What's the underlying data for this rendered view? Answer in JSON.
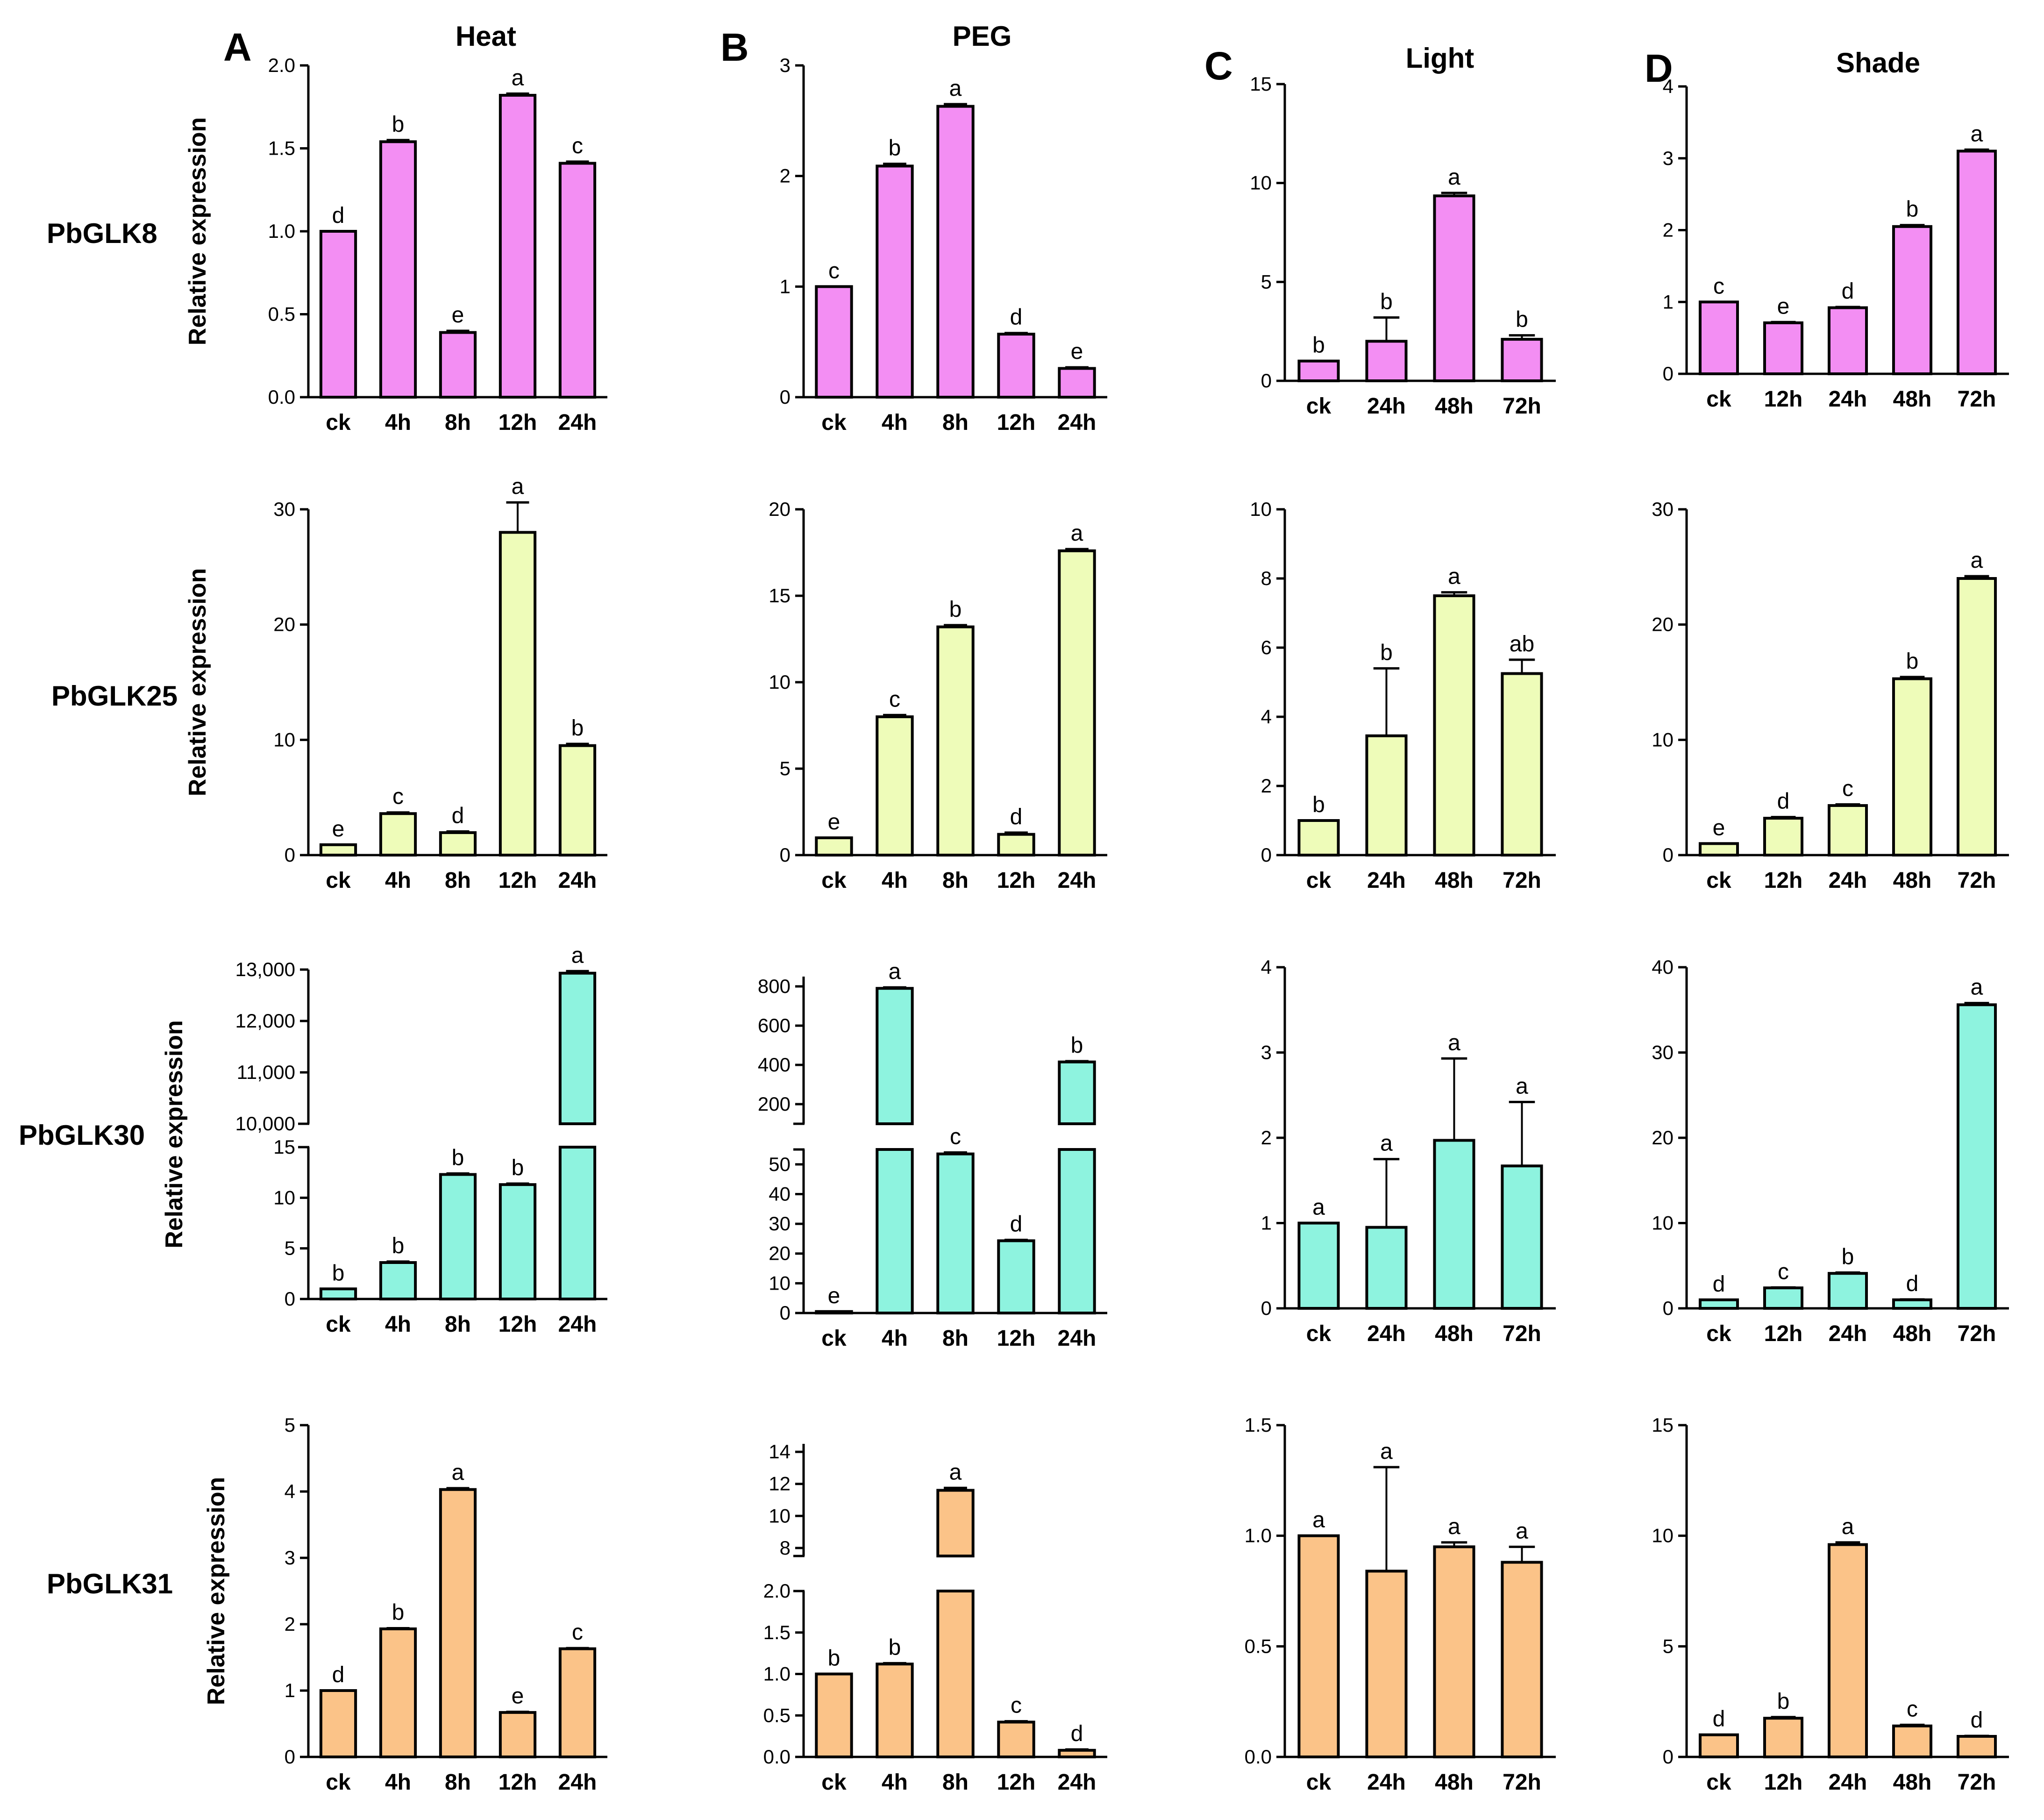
{
  "figure": {
    "columns": [
      {
        "letter": "A",
        "title": "Heat"
      },
      {
        "letter": "B",
        "title": "PEG"
      },
      {
        "letter": "C",
        "title": "Light"
      },
      {
        "letter": "D",
        "title": "Shade"
      }
    ],
    "genes": [
      "PbGLK8",
      "PbGLK25",
      "PbGLK30",
      "PbGLK31"
    ],
    "ylabel": "Relative expression",
    "colors": {
      "PbGLK8": "#f38ef3",
      "PbGLK25": "#eefcb9",
      "PbGLK30": "#8ef3df",
      "PbGLK31": "#fbc388"
    }
  },
  "chart_data": [
    {
      "type": "bar",
      "gene": "PbGLK8",
      "condition": "Heat",
      "categories": [
        "ck",
        "4h",
        "8h",
        "12h",
        "24h"
      ],
      "values": [
        1.0,
        1.54,
        0.39,
        1.82,
        1.41
      ],
      "errors": [
        0,
        0.01,
        0.01,
        0.01,
        0.01
      ],
      "letters": [
        "d",
        "b",
        "e",
        "a",
        "c"
      ],
      "ylim": [
        0,
        2.0
      ],
      "yticks": [
        0,
        0.5,
        1.0,
        1.5,
        2.0
      ],
      "ytick_labels": [
        "0.0",
        "0.5",
        "1.0",
        "1.5",
        "2.0"
      ],
      "ylabel": "Relative expression"
    },
    {
      "type": "bar",
      "gene": "PbGLK8",
      "condition": "PEG",
      "categories": [
        "ck",
        "4h",
        "8h",
        "12h",
        "24h"
      ],
      "values": [
        1.0,
        2.09,
        2.63,
        0.57,
        0.26
      ],
      "errors": [
        0,
        0.02,
        0.02,
        0.01,
        0.01
      ],
      "letters": [
        "c",
        "b",
        "a",
        "d",
        "e"
      ],
      "ylim": [
        0,
        3
      ],
      "yticks": [
        0,
        1,
        2,
        3
      ],
      "ytick_labels": [
        "0",
        "1",
        "2",
        "3"
      ]
    },
    {
      "type": "bar",
      "gene": "PbGLK8",
      "condition": "Light",
      "categories": [
        "ck",
        "24h",
        "48h",
        "72h"
      ],
      "values": [
        1.0,
        2.0,
        9.35,
        2.1
      ],
      "errors": [
        0,
        1.2,
        0.15,
        0.2
      ],
      "letters": [
        "b",
        "b",
        "a",
        "b"
      ],
      "ylim": [
        0,
        15
      ],
      "yticks": [
        0,
        5,
        10,
        15
      ],
      "ytick_labels": [
        "0",
        "5",
        "10",
        "15"
      ]
    },
    {
      "type": "bar",
      "gene": "PbGLK8",
      "condition": "Shade",
      "categories": [
        "ck",
        "12h",
        "24h",
        "48h",
        "72h"
      ],
      "values": [
        1.0,
        0.71,
        0.92,
        2.05,
        3.1
      ],
      "errors": [
        0,
        0.01,
        0.01,
        0.02,
        0.02
      ],
      "letters": [
        "c",
        "e",
        "d",
        "b",
        "a"
      ],
      "ylim": [
        0,
        4
      ],
      "yticks": [
        0,
        1,
        2,
        3,
        4
      ],
      "ytick_labels": [
        "0",
        "1",
        "2",
        "3",
        "4"
      ]
    },
    {
      "type": "bar",
      "gene": "PbGLK25",
      "condition": "Heat",
      "categories": [
        "ck",
        "4h",
        "8h",
        "12h",
        "24h"
      ],
      "values": [
        0.9,
        3.6,
        1.95,
        28.0,
        9.5
      ],
      "errors": [
        0,
        0.1,
        0.1,
        2.6,
        0.15
      ],
      "letters": [
        "e",
        "c",
        "d",
        "a",
        "b"
      ],
      "ylim": [
        0,
        30
      ],
      "yticks": [
        0,
        10,
        20,
        30
      ],
      "ytick_labels": [
        "0",
        "10",
        "20",
        "30"
      ],
      "ylabel": "Relative expression"
    },
    {
      "type": "bar",
      "gene": "PbGLK25",
      "condition": "PEG",
      "categories": [
        "ck",
        "4h",
        "8h",
        "12h",
        "24h"
      ],
      "values": [
        1.0,
        8.0,
        13.2,
        1.2,
        17.6
      ],
      "errors": [
        0,
        0.1,
        0.1,
        0.1,
        0.1
      ],
      "letters": [
        "e",
        "c",
        "b",
        "d",
        "a"
      ],
      "ylim": [
        0,
        20
      ],
      "yticks": [
        0,
        5,
        10,
        15,
        20
      ],
      "ytick_labels": [
        "0",
        "5",
        "10",
        "15",
        "20"
      ]
    },
    {
      "type": "bar",
      "gene": "PbGLK25",
      "condition": "Light",
      "categories": [
        "ck",
        "24h",
        "48h",
        "72h"
      ],
      "values": [
        1.0,
        3.45,
        7.5,
        5.25
      ],
      "errors": [
        0,
        1.95,
        0.1,
        0.4
      ],
      "letters": [
        "b",
        "b",
        "a",
        "ab"
      ],
      "ylim": [
        0,
        10
      ],
      "yticks": [
        0,
        2,
        4,
        6,
        8,
        10
      ],
      "ytick_labels": [
        "0",
        "2",
        "4",
        "6",
        "8",
        "10"
      ]
    },
    {
      "type": "bar",
      "gene": "PbGLK25",
      "condition": "Shade",
      "categories": [
        "ck",
        "12h",
        "24h",
        "48h",
        "72h"
      ],
      "values": [
        1.0,
        3.2,
        4.3,
        15.3,
        24.0
      ],
      "errors": [
        0,
        0.1,
        0.1,
        0.15,
        0.2
      ],
      "letters": [
        "e",
        "d",
        "c",
        "b",
        "a"
      ],
      "ylim": [
        0,
        30
      ],
      "yticks": [
        0,
        10,
        20,
        30
      ],
      "ytick_labels": [
        "0",
        "10",
        "20",
        "30"
      ]
    },
    {
      "type": "bar",
      "gene": "PbGLK30",
      "condition": "Heat",
      "categories": [
        "ck",
        "4h",
        "8h",
        "12h",
        "24h"
      ],
      "values": [
        1.0,
        3.6,
        12.3,
        11.3,
        12930
      ],
      "errors": [
        0,
        0.1,
        0.1,
        0.1,
        40
      ],
      "letters": [
        "b",
        "b",
        "b",
        "b",
        "a"
      ],
      "broken_axis": {
        "lower": [
          0,
          15
        ],
        "upper": [
          10000,
          13000
        ]
      },
      "yticks_lower": [
        0,
        5,
        10,
        15
      ],
      "ytick_labels_lower": [
        "0",
        "5",
        "10",
        "15"
      ],
      "yticks_upper": [
        10000,
        11000,
        12000,
        13000
      ],
      "ytick_labels_upper": [
        "10,000",
        "11,000",
        "12,000",
        "13,000"
      ],
      "ylabel": "Relative expression"
    },
    {
      "type": "bar",
      "gene": "PbGLK30",
      "condition": "PEG",
      "categories": [
        "ck",
        "4h",
        "8h",
        "12h",
        "24h"
      ],
      "values": [
        0.5,
        790,
        53.5,
        24.3,
        415
      ],
      "errors": [
        0,
        5,
        0.5,
        0.3,
        4
      ],
      "letters": [
        "e",
        "a",
        "c",
        "d",
        "b"
      ],
      "broken_axis": {
        "lower": [
          0,
          55
        ],
        "upper": [
          100,
          850
        ]
      },
      "yticks_lower": [
        0,
        10,
        20,
        30,
        40,
        50
      ],
      "ytick_labels_lower": [
        "0",
        "10",
        "20",
        "30",
        "40",
        "50"
      ],
      "yticks_upper": [
        200,
        400,
        600,
        800
      ],
      "ytick_labels_upper": [
        "200",
        "400",
        "600",
        "800"
      ]
    },
    {
      "type": "bar",
      "gene": "PbGLK30",
      "condition": "Light",
      "categories": [
        "ck",
        "24h",
        "48h",
        "72h"
      ],
      "values": [
        1.0,
        0.95,
        1.97,
        1.67
      ],
      "errors": [
        0,
        0.8,
        0.96,
        0.75
      ],
      "letters": [
        "a",
        "a",
        "a",
        "a"
      ],
      "ylim": [
        0,
        4
      ],
      "yticks": [
        0,
        1,
        2,
        3,
        4
      ],
      "ytick_labels": [
        "0",
        "1",
        "2",
        "3",
        "4"
      ]
    },
    {
      "type": "bar",
      "gene": "PbGLK30",
      "condition": "Shade",
      "categories": [
        "ck",
        "12h",
        "24h",
        "48h",
        "72h"
      ],
      "values": [
        1.0,
        2.4,
        4.1,
        1.0,
        35.6
      ],
      "errors": [
        0,
        0.05,
        0.1,
        0.05,
        0.2
      ],
      "letters": [
        "d",
        "c",
        "b",
        "d",
        "a"
      ],
      "ylim": [
        0,
        40
      ],
      "yticks": [
        0,
        10,
        20,
        30,
        40
      ],
      "ytick_labels": [
        "0",
        "10",
        "20",
        "30",
        "40"
      ]
    },
    {
      "type": "bar",
      "gene": "PbGLK31",
      "condition": "Heat",
      "categories": [
        "ck",
        "4h",
        "8h",
        "12h",
        "24h"
      ],
      "values": [
        1.0,
        1.93,
        4.03,
        0.67,
        1.63
      ],
      "errors": [
        0,
        0.01,
        0.02,
        0.01,
        0.01
      ],
      "letters": [
        "d",
        "b",
        "a",
        "e",
        "c"
      ],
      "ylim": [
        0,
        5
      ],
      "yticks": [
        0,
        1,
        2,
        3,
        4,
        5
      ],
      "ytick_labels": [
        "0",
        "1",
        "2",
        "3",
        "4",
        "5"
      ],
      "ylabel": "Relative expression"
    },
    {
      "type": "bar",
      "gene": "PbGLK31",
      "condition": "PEG",
      "categories": [
        "ck",
        "4h",
        "8h",
        "12h",
        "24h"
      ],
      "values": [
        1.0,
        1.12,
        11.6,
        0.42,
        0.08
      ],
      "errors": [
        0,
        0.01,
        0.15,
        0.01,
        0.01
      ],
      "letters": [
        "b",
        "b",
        "a",
        "c",
        "d"
      ],
      "broken_axis": {
        "lower": [
          0,
          2.0
        ],
        "upper": [
          7.5,
          14.5
        ]
      },
      "yticks_lower": [
        0,
        0.5,
        1.0,
        1.5,
        2.0
      ],
      "ytick_labels_lower": [
        "0.0",
        "0.5",
        "1.0",
        "1.5",
        "2.0"
      ],
      "yticks_upper": [
        8,
        10,
        12,
        14
      ],
      "ytick_labels_upper": [
        "8",
        "10",
        "12",
        "14"
      ]
    },
    {
      "type": "bar",
      "gene": "PbGLK31",
      "condition": "Light",
      "categories": [
        "ck",
        "24h",
        "48h",
        "72h"
      ],
      "values": [
        1.0,
        0.84,
        0.95,
        0.88
      ],
      "errors": [
        0,
        0.47,
        0.02,
        0.07
      ],
      "letters": [
        "a",
        "a",
        "a",
        "a"
      ],
      "ylim": [
        0,
        1.5
      ],
      "yticks": [
        0,
        0.5,
        1.0,
        1.5
      ],
      "ytick_labels": [
        "0.0",
        "0.5",
        "1.0",
        "1.5"
      ]
    },
    {
      "type": "bar",
      "gene": "PbGLK31",
      "condition": "Shade",
      "categories": [
        "ck",
        "12h",
        "24h",
        "48h",
        "72h"
      ],
      "values": [
        1.0,
        1.75,
        9.6,
        1.4,
        0.93
      ],
      "errors": [
        0,
        0.05,
        0.1,
        0.05,
        0.02
      ],
      "letters": [
        "d",
        "b",
        "a",
        "c",
        "d"
      ],
      "ylim": [
        0,
        15
      ],
      "yticks": [
        0,
        5,
        10,
        15
      ],
      "ytick_labels": [
        "0",
        "5",
        "10",
        "15"
      ]
    }
  ]
}
